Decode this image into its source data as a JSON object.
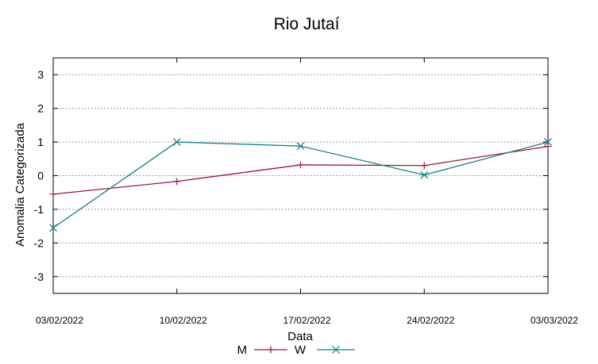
{
  "chart_data": {
    "type": "line",
    "title": "Rio Jutaí",
    "xlabel": "Data",
    "ylabel": "Anomalia Categorizada",
    "categories": [
      "03/02/2022",
      "10/02/2022",
      "17/02/2022",
      "24/02/2022",
      "03/03/2022"
    ],
    "ylim": [
      -3.5,
      3.5
    ],
    "yticks": [
      "3",
      "2",
      "1",
      "0",
      "-1",
      "-2",
      "-3"
    ],
    "ytick_values": [
      3,
      2,
      1,
      0,
      -1,
      -2,
      -3
    ],
    "grid": true,
    "legend_position": "bottom-center",
    "series": [
      {
        "name": "M",
        "color": "#9e1a2e",
        "marker": "plus",
        "values": [
          -0.55,
          -0.17,
          0.32,
          0.3,
          0.87
        ]
      },
      {
        "name": "W",
        "color": "#107f86",
        "marker": "x",
        "values": [
          -1.55,
          1.0,
          0.88,
          0.02,
          1.0
        ]
      }
    ]
  }
}
